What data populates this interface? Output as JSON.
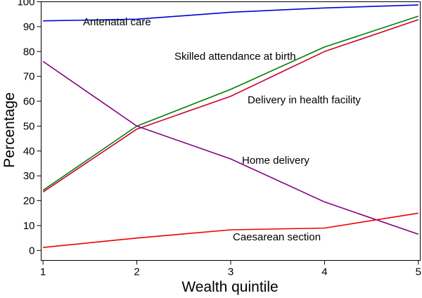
{
  "chart_data": {
    "type": "line",
    "title": "",
    "xlabel": "Wealth quintile",
    "ylabel": "Percentage",
    "x": [
      1,
      2,
      3,
      4,
      5
    ],
    "xlim": [
      0.98,
      5.02
    ],
    "ylim": [
      -4,
      100
    ],
    "xticks": [
      "1",
      "2",
      "3",
      "4",
      "5"
    ],
    "yticks": [
      "0",
      "10",
      "20",
      "30",
      "40",
      "50",
      "60",
      "70",
      "80",
      "90",
      "100"
    ],
    "grid": false,
    "legend": "none (series labelled directly on the plot)",
    "series": [
      {
        "name": "Antenatal care",
        "color": "#0000dd",
        "values": [
          92.3,
          93.0,
          95.8,
          97.5,
          98.7
        ]
      },
      {
        "name": "Skilled attendance at birth",
        "color": "#008000",
        "values": [
          24.2,
          50.0,
          64.8,
          81.8,
          94.2
        ]
      },
      {
        "name": "Delivery in health facility",
        "color": "#cc0033",
        "values": [
          23.5,
          48.8,
          62.0,
          80.0,
          92.8
        ]
      },
      {
        "name": "Home delivery",
        "color": "#800080",
        "values": [
          76.0,
          50.0,
          36.8,
          19.5,
          6.5
        ]
      },
      {
        "name": "Caesarean section",
        "color": "#ee0000",
        "values": [
          1.2,
          5.0,
          8.3,
          9.0,
          15.0
        ]
      }
    ]
  }
}
